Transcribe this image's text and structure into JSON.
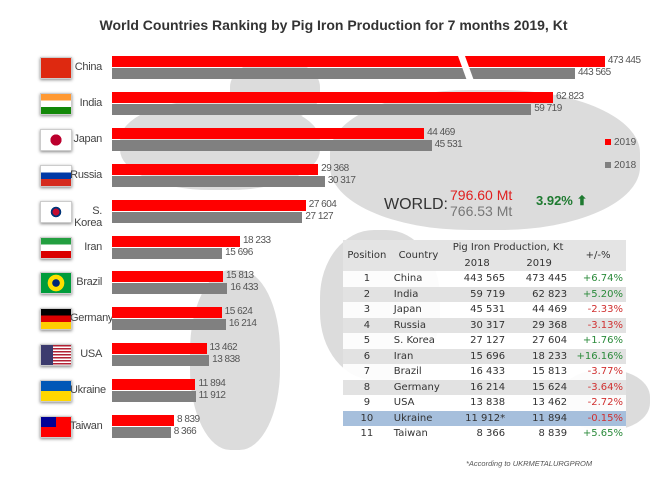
{
  "chart_data": {
    "type": "bar",
    "title": "World Countries Ranking by Pig Iron Production for 7 months 2019, Kt",
    "categories": [
      "China",
      "India",
      "Japan",
      "Russia",
      "S. Korea",
      "Iran",
      "Brazil",
      "Germany",
      "USA",
      "Ukraine",
      "Taiwan"
    ],
    "series": [
      {
        "name": "2019",
        "color": "#ff0000",
        "values": [
          473445,
          62823,
          44469,
          29368,
          27604,
          18233,
          15813,
          15624,
          13462,
          11894,
          8839
        ],
        "labels": [
          "473 445",
          "62 823",
          "44 469",
          "29 368",
          "27 604",
          "18 233",
          "15 813",
          "15 624",
          "13 462",
          "11 894",
          "8 839"
        ]
      },
      {
        "name": "2018",
        "color": "#808080",
        "values": [
          443565,
          59719,
          45531,
          30317,
          27127,
          15696,
          16433,
          16214,
          13838,
          11912,
          8366
        ],
        "labels": [
          "443 565",
          "59 719",
          "45 531",
          "30 317",
          "27 127",
          "15 696",
          "16 433",
          "16 214",
          "13 838",
          "11 912",
          "8 366"
        ]
      }
    ],
    "axis_break": true
  },
  "world": {
    "label": "WORLD:",
    "v2019": "796.60 Mt",
    "v2018": "766.53 Mt",
    "change": "3.92%",
    "arrow": "⬆"
  },
  "table": {
    "headers": {
      "position": "Position",
      "country": "Country",
      "production": "Pig Iron Production, Kt",
      "y2018": "2018",
      "y2019": "2019",
      "change": "+/-%"
    },
    "rows": [
      [
        "1",
        "China",
        "443 565",
        "473 445",
        "+6.74%"
      ],
      [
        "2",
        "India",
        "59 719",
        "62 823",
        "+5.20%"
      ],
      [
        "3",
        "Japan",
        "45 531",
        "44 469",
        "-2.33%"
      ],
      [
        "4",
        "Russia",
        "30 317",
        "29 368",
        "-3.13%"
      ],
      [
        "5",
        "S. Korea",
        "27 127",
        "27 604",
        "+1.76%"
      ],
      [
        "6",
        "Iran",
        "15 696",
        "18 233",
        "+16.16%"
      ],
      [
        "7",
        "Brazil",
        "16 433",
        "15 813",
        "-3.77%"
      ],
      [
        "8",
        "Germany",
        "16 214",
        "15 624",
        "-3.64%"
      ],
      [
        "9",
        "USA",
        "13 838",
        "13 462",
        "-2.72%"
      ],
      [
        "10",
        "Ukraine",
        "11 912*",
        "11 894",
        "-0.15%"
      ],
      [
        "11",
        "Taiwan",
        "8 366",
        "8 839",
        "+5.65%"
      ]
    ]
  },
  "note": "*According to UKRMETALURGPROM"
}
